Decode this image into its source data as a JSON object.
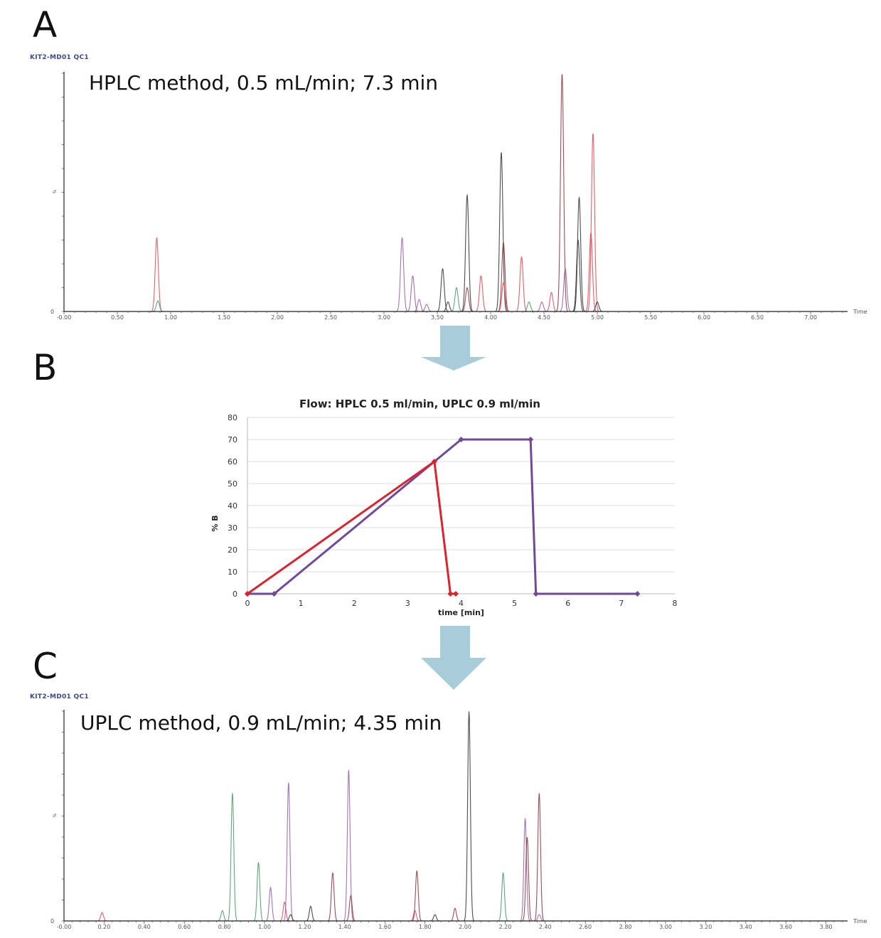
{
  "panels": {
    "a": {
      "letter": "A",
      "run_id": "KIT2-MD01 QC1",
      "method": "HPLC method, 0.5 mL/min; 7.3 min"
    },
    "b": {
      "letter": "B"
    },
    "c": {
      "letter": "C",
      "run_id": "KIT2-MD01 QC1",
      "method": "UPLC method, 0.9 mL/min; 4.35 min"
    }
  },
  "colors": {
    "red": "#e0505a",
    "purple": "#9a64a8",
    "black": "#3a3a3a",
    "green": "#4f9d6c",
    "brown": "#8e3c44",
    "arrow": "#a8cdd8",
    "grad_red": "#d9232e",
    "grad_purple": "#6f4a96"
  },
  "chart_data": [
    {
      "type": "line",
      "subtype": "chromatogram",
      "xlabel": "Time",
      "y_ticks": [
        "0",
        "%"
      ],
      "x_ticks": [
        "-0.00",
        "0.50",
        "1.00",
        "1.50",
        "2.00",
        "2.50",
        "3.00",
        "3.50",
        "4.00",
        "4.50",
        "5.00",
        "5.50",
        "6.00",
        "6.50",
        "7.00"
      ],
      "xlim": [
        0,
        7.3
      ],
      "ylim": [
        0,
        100
      ],
      "peaks": [
        {
          "t": 0.87,
          "h": 31,
          "c": "red"
        },
        {
          "t": 0.88,
          "h": 4.5,
          "c": "green"
        },
        {
          "t": 3.17,
          "h": 31,
          "c": "purple"
        },
        {
          "t": 3.27,
          "h": 15,
          "c": "purple"
        },
        {
          "t": 3.33,
          "h": 5,
          "c": "purple"
        },
        {
          "t": 3.4,
          "h": 3,
          "c": "purple"
        },
        {
          "t": 3.55,
          "h": 18,
          "c": "black"
        },
        {
          "t": 3.6,
          "h": 4,
          "c": "black"
        },
        {
          "t": 3.68,
          "h": 10,
          "c": "green"
        },
        {
          "t": 3.78,
          "h": 49,
          "c": "black"
        },
        {
          "t": 3.78,
          "h": 10,
          "c": "brown"
        },
        {
          "t": 3.91,
          "h": 15,
          "c": "red"
        },
        {
          "t": 4.1,
          "h": 67,
          "c": "black"
        },
        {
          "t": 4.12,
          "h": 29,
          "c": "brown"
        },
        {
          "t": 4.12,
          "h": 12,
          "c": "red"
        },
        {
          "t": 4.29,
          "h": 23,
          "c": "red"
        },
        {
          "t": 4.36,
          "h": 4,
          "c": "green"
        },
        {
          "t": 4.48,
          "h": 4,
          "c": "purple"
        },
        {
          "t": 4.57,
          "h": 8,
          "c": "red"
        },
        {
          "t": 4.67,
          "h": 100,
          "c": "brown"
        },
        {
          "t": 4.7,
          "h": 18,
          "c": "purple"
        },
        {
          "t": 4.82,
          "h": 30,
          "c": "black"
        },
        {
          "t": 4.83,
          "h": 48,
          "c": "black"
        },
        {
          "t": 4.94,
          "h": 33,
          "c": "red"
        },
        {
          "t": 4.96,
          "h": 75,
          "c": "red"
        },
        {
          "t": 5.0,
          "h": 4,
          "c": "black"
        }
      ]
    },
    {
      "type": "line",
      "title": "Flow: HPLC 0.5 ml/min, UPLC 0.9 ml/min",
      "xlabel": "time [min]",
      "ylabel": "% B",
      "xlim": [
        0,
        8
      ],
      "ylim": [
        0,
        80
      ],
      "x_ticks": [
        "0",
        "1",
        "2",
        "3",
        "4",
        "5",
        "6",
        "7",
        "8"
      ],
      "y_ticks": [
        "0",
        "10",
        "20",
        "30",
        "40",
        "50",
        "60",
        "70",
        "80"
      ],
      "grid": true,
      "series": [
        {
          "color": "grad_red",
          "x": [
            0,
            3.5,
            3.8,
            3.9
          ],
          "y": [
            0,
            60,
            0,
            0
          ]
        },
        {
          "color": "grad_purple",
          "x": [
            0,
            0.5,
            4,
            5.3,
            5.4,
            7.3
          ],
          "y": [
            0,
            0,
            70,
            70,
            0,
            0
          ]
        }
      ]
    },
    {
      "type": "line",
      "subtype": "chromatogram",
      "xlabel": "Time",
      "y_ticks": [
        "0",
        "%"
      ],
      "x_ticks": [
        "-0.00",
        "0.20",
        "0.40",
        "0.60",
        "0.80",
        "1.00",
        "1.20",
        "1.40",
        "1.60",
        "1.80",
        "2.00",
        "2.20",
        "2.40",
        "2.60",
        "2.80",
        "3.00",
        "3.20",
        "3.40",
        "3.60",
        "3.80"
      ],
      "xlim": [
        0,
        3.9
      ],
      "ylim": [
        0,
        100
      ],
      "peaks": [
        {
          "t": 0.19,
          "h": 4,
          "c": "red"
        },
        {
          "t": 0.79,
          "h": 5,
          "c": "green"
        },
        {
          "t": 0.84,
          "h": 61,
          "c": "green"
        },
        {
          "t": 0.97,
          "h": 28,
          "c": "green"
        },
        {
          "t": 1.03,
          "h": 16,
          "c": "purple"
        },
        {
          "t": 1.1,
          "h": 9,
          "c": "red"
        },
        {
          "t": 1.12,
          "h": 66,
          "c": "purple"
        },
        {
          "t": 1.13,
          "h": 3,
          "c": "black"
        },
        {
          "t": 1.23,
          "h": 7,
          "c": "black"
        },
        {
          "t": 1.34,
          "h": 23,
          "c": "brown"
        },
        {
          "t": 1.42,
          "h": 72,
          "c": "purple"
        },
        {
          "t": 1.43,
          "h": 12,
          "c": "brown"
        },
        {
          "t": 1.75,
          "h": 5,
          "c": "red"
        },
        {
          "t": 1.76,
          "h": 24,
          "c": "brown"
        },
        {
          "t": 1.85,
          "h": 3,
          "c": "black"
        },
        {
          "t": 1.95,
          "h": 6,
          "c": "brown"
        },
        {
          "t": 2.02,
          "h": 100,
          "c": "black"
        },
        {
          "t": 2.19,
          "h": 23,
          "c": "green"
        },
        {
          "t": 2.3,
          "h": 49,
          "c": "purple"
        },
        {
          "t": 2.31,
          "h": 40,
          "c": "brown"
        },
        {
          "t": 2.37,
          "h": 61,
          "c": "brown"
        },
        {
          "t": 2.37,
          "h": 3,
          "c": "purple"
        }
      ]
    }
  ]
}
